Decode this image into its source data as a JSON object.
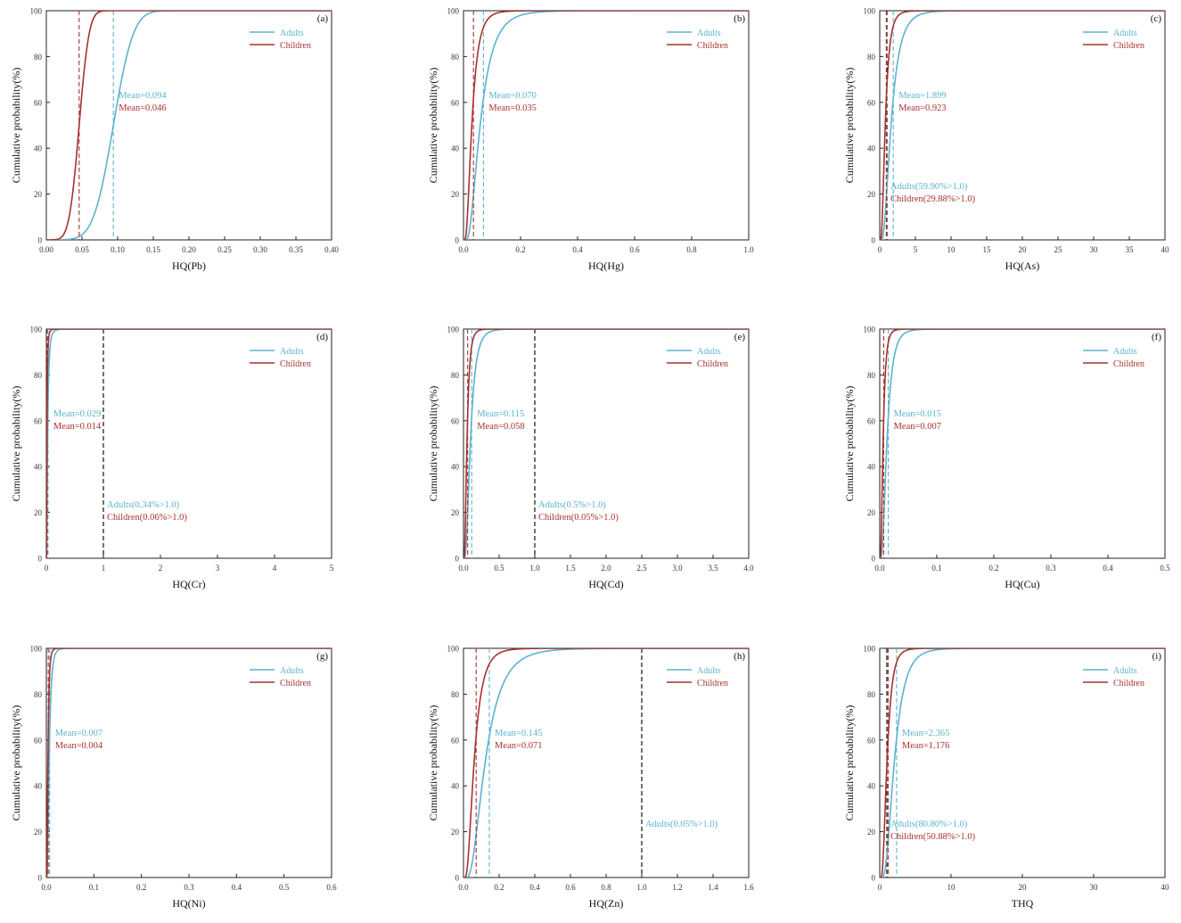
{
  "colors": {
    "adults": "#5bb3cf",
    "children": "#a8312f",
    "axis": "#222222",
    "threshold": "#111111"
  },
  "ylabel": "Cumulative probability(%)",
  "yticks": [
    "0",
    "20",
    "40",
    "60",
    "80",
    "100"
  ],
  "legend": {
    "adults": "Adults",
    "children": "Children"
  },
  "chart_data": [
    {
      "type": "line",
      "panel": "(a)",
      "xlabel": "HQ(Pb)",
      "xlim": [
        0,
        0.4
      ],
      "xticks": [
        "0.00",
        "0.05",
        "0.10",
        "0.15",
        "0.20",
        "0.25",
        "0.30",
        "0.35",
        "0.40"
      ],
      "ylim": [
        0,
        100
      ],
      "grid": false,
      "legend_position": "top-right",
      "series": [
        {
          "name": "Adults",
          "mean": 0.094,
          "mean_label": "Mean=0.094",
          "dist": "normal",
          "scale": 0.022
        },
        {
          "name": "Children",
          "mean": 0.046,
          "mean_label": "Mean=0.046",
          "dist": "normal",
          "scale": 0.011
        }
      ],
      "threshold": null,
      "exceed": []
    },
    {
      "type": "line",
      "panel": "(b)",
      "xlabel": "HQ(Hg)",
      "xlim": [
        0,
        1.0
      ],
      "xticks": [
        "0.0",
        "0.2",
        "0.4",
        "0.6",
        "0.8",
        "1.0"
      ],
      "ylim": [
        0,
        100
      ],
      "grid": false,
      "legend_position": "top-right",
      "series": [
        {
          "name": "Adults",
          "mean": 0.07,
          "mean_label": "Mean=0.070",
          "dist": "lognormal",
          "scale": 0.6
        },
        {
          "name": "Children",
          "mean": 0.035,
          "mean_label": "Mean=0.035",
          "dist": "lognormal",
          "scale": 0.6
        }
      ],
      "threshold": null,
      "exceed": []
    },
    {
      "type": "line",
      "panel": "(c)",
      "xlabel": "HQ(As)",
      "xlim": [
        0,
        40
      ],
      "xticks": [
        "0",
        "5",
        "10",
        "15",
        "20",
        "25",
        "30",
        "35",
        "40"
      ],
      "ylim": [
        0,
        100
      ],
      "grid": false,
      "legend_position": "top-right",
      "series": [
        {
          "name": "Adults",
          "mean": 1.899,
          "mean_label": "Mean=1.899",
          "dist": "lognormal",
          "scale": 0.6
        },
        {
          "name": "Children",
          "mean": 0.923,
          "mean_label": "Mean=0.923",
          "dist": "lognormal",
          "scale": 0.6
        }
      ],
      "threshold": 1.0,
      "exceed": [
        {
          "series": "Adults",
          "label": "Adults(59.90%>1.0)"
        },
        {
          "series": "Children",
          "label": "Children(29.88%>1.0)"
        }
      ]
    },
    {
      "type": "line",
      "panel": "(d)",
      "xlabel": "HQ(Cr)",
      "xlim": [
        0,
        5
      ],
      "xticks": [
        "0",
        "1",
        "2",
        "3",
        "4",
        "5"
      ],
      "ylim": [
        0,
        100
      ],
      "grid": false,
      "legend_position": "top-right",
      "series": [
        {
          "name": "Adults",
          "mean": 0.029,
          "mean_label": "Mean=0.029",
          "dist": "lognormal",
          "scale": 0.8
        },
        {
          "name": "Children",
          "mean": 0.014,
          "mean_label": "Mean=0.014",
          "dist": "lognormal",
          "scale": 0.8
        }
      ],
      "threshold": 1.0,
      "exceed": [
        {
          "series": "Adults",
          "label": "Adults(0.34%>1.0)"
        },
        {
          "series": "Children",
          "label": "Children(0.06%>1.0)"
        }
      ]
    },
    {
      "type": "line",
      "panel": "(e)",
      "xlabel": "HQ(Cd)",
      "xlim": [
        0,
        4.0
      ],
      "xticks": [
        "0.0",
        "0.5",
        "1.0",
        "1.5",
        "2.0",
        "2.5",
        "3.0",
        "3.5",
        "4.0"
      ],
      "ylim": [
        0,
        100
      ],
      "grid": false,
      "legend_position": "top-right",
      "series": [
        {
          "name": "Adults",
          "mean": 0.115,
          "mean_label": "Mean=0.115",
          "dist": "lognormal",
          "scale": 0.6
        },
        {
          "name": "Children",
          "mean": 0.058,
          "mean_label": "Mean=0.058",
          "dist": "lognormal",
          "scale": 0.6
        }
      ],
      "threshold": 1.0,
      "exceed": [
        {
          "series": "Adults",
          "label": "Adults(0.5%>1.0)"
        },
        {
          "series": "Children",
          "label": "Children(0.05%>1.0)"
        }
      ]
    },
    {
      "type": "line",
      "panel": "(f)",
      "xlabel": "HQ(Cu)",
      "xlim": [
        0,
        0.5
      ],
      "xticks": [
        "0.0",
        "0.1",
        "0.2",
        "0.3",
        "0.4",
        "0.5"
      ],
      "ylim": [
        0,
        100
      ],
      "grid": false,
      "legend_position": "top-right",
      "series": [
        {
          "name": "Adults",
          "mean": 0.015,
          "mean_label": "Mean=0.015",
          "dist": "lognormal",
          "scale": 0.6
        },
        {
          "name": "Children",
          "mean": 0.007,
          "mean_label": "Mean=0.007",
          "dist": "lognormal",
          "scale": 0.6
        }
      ],
      "threshold": null,
      "exceed": []
    },
    {
      "type": "line",
      "panel": "(g)",
      "xlabel": "HQ(Ni)",
      "xlim": [
        0,
        0.6
      ],
      "xticks": [
        "0.0",
        "0.1",
        "0.2",
        "0.3",
        "0.4",
        "0.5",
        "0.6"
      ],
      "ylim": [
        0,
        100
      ],
      "grid": false,
      "legend_position": "top-right",
      "series": [
        {
          "name": "Adults",
          "mean": 0.007,
          "mean_label": "Mean=0.007",
          "dist": "lognormal",
          "scale": 0.6
        },
        {
          "name": "Children",
          "mean": 0.004,
          "mean_label": "Mean=0.004",
          "dist": "lognormal",
          "scale": 0.6
        }
      ],
      "threshold": null,
      "exceed": []
    },
    {
      "type": "line",
      "panel": "(h)",
      "xlabel": "HQ(Zn)",
      "xlim": [
        0,
        1.6
      ],
      "xticks": [
        "0.0",
        "0.2",
        "0.4",
        "0.6",
        "0.8",
        "1.0",
        "1.2",
        "1.4",
        "1.6"
      ],
      "ylim": [
        0,
        100
      ],
      "grid": false,
      "legend_position": "top-right",
      "series": [
        {
          "name": "Adults",
          "mean": 0.145,
          "mean_label": "Mean=0.145",
          "dist": "lognormal",
          "scale": 0.6
        },
        {
          "name": "Children",
          "mean": 0.071,
          "mean_label": "Mean=0.071",
          "dist": "lognormal",
          "scale": 0.6
        }
      ],
      "threshold": 1.0,
      "exceed": [
        {
          "series": "Adults",
          "label": "Adults(0.05%>1.0)"
        }
      ]
    },
    {
      "type": "line",
      "panel": "(i)",
      "xlabel": "THQ",
      "xlim": [
        0,
        40
      ],
      "xticks": [
        "0",
        "10",
        "20",
        "30",
        "40"
      ],
      "ylim": [
        0,
        100
      ],
      "grid": false,
      "legend_position": "top-right",
      "series": [
        {
          "name": "Adults",
          "mean": 2.365,
          "mean_label": "Mean=2.365",
          "dist": "lognormal",
          "scale": 0.55
        },
        {
          "name": "Children",
          "mean": 1.176,
          "mean_label": "Mean=1.176",
          "dist": "lognormal",
          "scale": 0.55
        }
      ],
      "threshold": 1.0,
      "exceed": [
        {
          "series": "Adults",
          "label": "Adults(80.80%>1.0)"
        },
        {
          "series": "Children",
          "label": "Children(50.88%>1.0)"
        }
      ]
    }
  ]
}
